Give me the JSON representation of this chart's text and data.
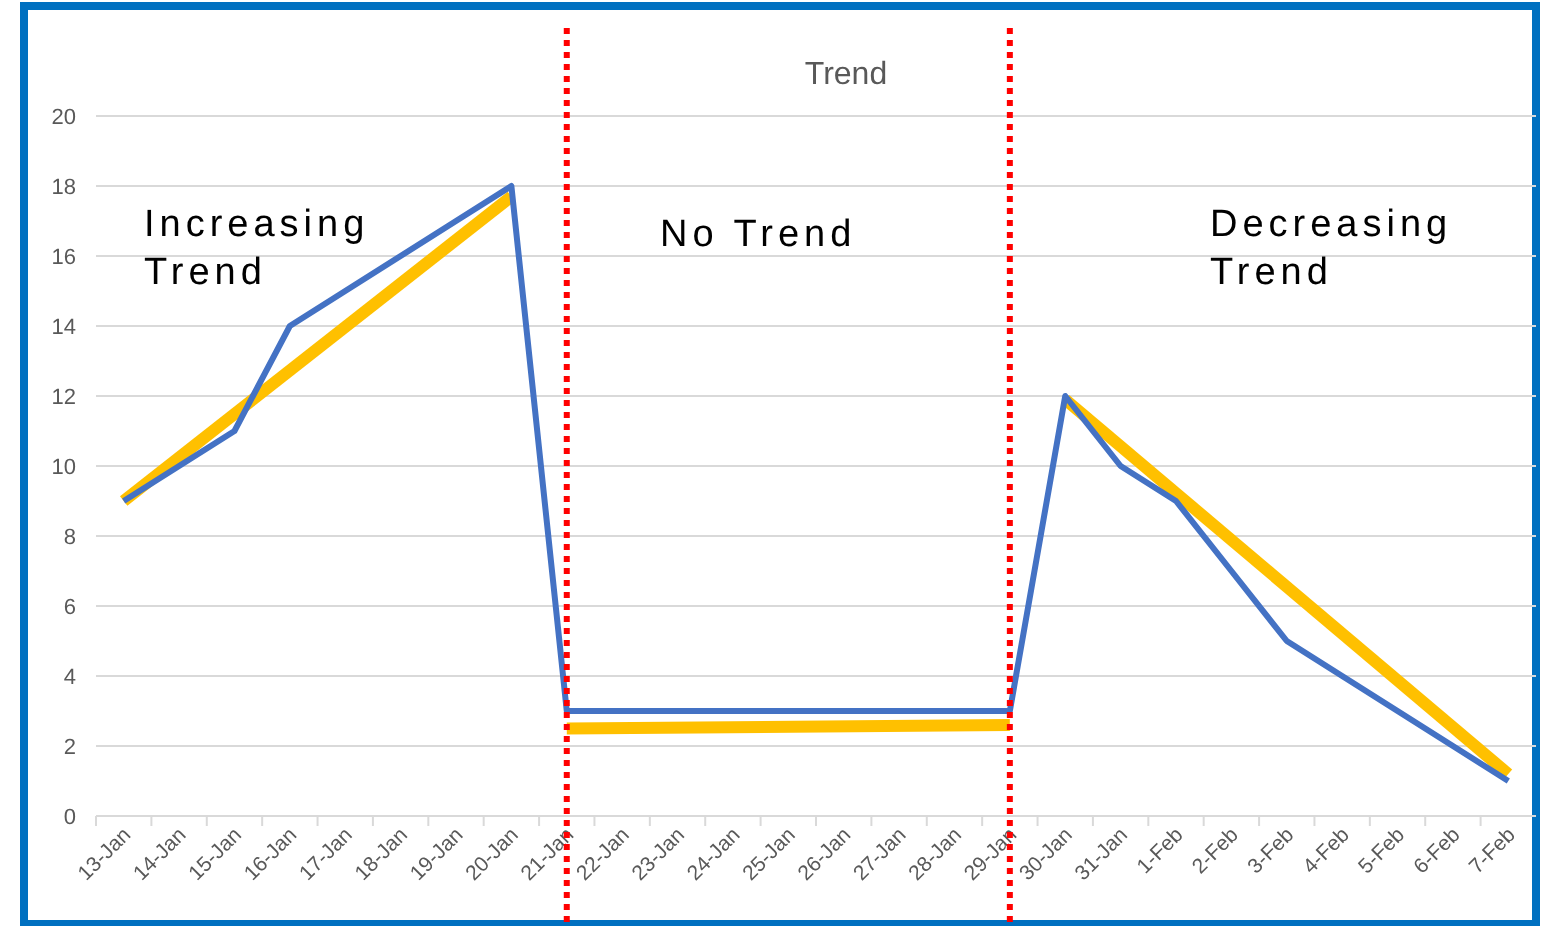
{
  "chart_data": {
    "type": "line",
    "title": "Trend",
    "categories": [
      "13-Jan",
      "14-Jan",
      "15-Jan",
      "16-Jan",
      "17-Jan",
      "18-Jan",
      "19-Jan",
      "20-Jan",
      "21-Jan",
      "22-Jan",
      "23-Jan",
      "24-Jan",
      "25-Jan",
      "26-Jan",
      "27-Jan",
      "28-Jan",
      "29-Jan",
      "30-Jan",
      "31-Jan",
      "1-Feb",
      "2-Feb",
      "3-Feb",
      "4-Feb",
      "5-Feb",
      "6-Feb",
      "7-Feb"
    ],
    "series": [
      {
        "color": "#4472c4",
        "values": [
          9,
          10,
          11,
          14,
          15,
          16,
          17,
          18,
          3,
          3,
          3,
          3,
          3,
          3,
          3,
          3,
          3,
          12,
          10,
          9,
          7,
          5,
          4,
          3,
          2,
          1
        ]
      },
      {
        "type": "line",
        "color": "#ffc000",
        "x": [
          "13-Jan",
          "20-Jan"
        ],
        "values": [
          9,
          17.7
        ]
      },
      {
        "type": "line",
        "color": "#ffc000",
        "x": [
          "21-Jan",
          "29-Jan"
        ],
        "values": [
          2.5,
          2.6
        ]
      },
      {
        "type": "line",
        "color": "#ffc000",
        "x": [
          "30-Jan",
          "7-Feb"
        ],
        "values": [
          11.9,
          1.2
        ]
      }
    ],
    "ylim": [
      0,
      20
    ],
    "yticks": [
      0,
      2,
      4,
      6,
      8,
      10,
      12,
      14,
      16,
      18,
      20
    ],
    "grid": "y",
    "marker": "none",
    "line_style": "solid",
    "ref_lines": [
      {
        "axis": "x",
        "value": "21-Jan",
        "color": "#ff0000",
        "line_style": "dotted"
      },
      {
        "axis": "x",
        "value": "29-Jan",
        "color": "#ff0000",
        "line_style": "dotted"
      }
    ],
    "annotations": [
      "Increasing\nTrend",
      "No Trend",
      "Decreasing\nTrend"
    ]
  }
}
